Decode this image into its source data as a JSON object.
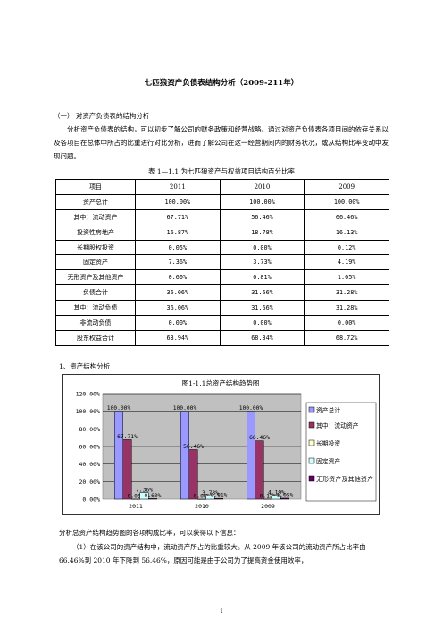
{
  "title": "七匹狼资产负债表结构分析（2009-211年）",
  "heading": "（一） 对资产负债表的结构分析",
  "intro": "分析资产负债表的结构，可以初步了解公司的财务政策和经营战略。通过对资产负债表各项目间的依存关系以及各项目在总体中所占的比重进行对比分析，进而了解公司在这一经营期间内的财务状况，或从结构比率变动中发现问题。",
  "table_caption": "表 1—1.1 为七匹狼资产与权益项目结构百分比率",
  "table": {
    "headers": [
      "项目",
      "2011",
      "2010",
      "2009"
    ],
    "rows": [
      [
        "资产总计",
        "100.00%",
        "100.00%",
        "100.00%"
      ],
      [
        "其中：流动资产",
        "67.71%",
        "56.46%",
        "66.46%"
      ],
      [
        "投资性房地产",
        "16.87%",
        "18.78%",
        "16.13%"
      ],
      [
        "长期股权投资",
        "0.05%",
        "0.00%",
        "0.12%"
      ],
      [
        "固定资产",
        "7.36%",
        "3.73%",
        "4.19%"
      ],
      [
        "无形资产及其他资产",
        "0.60%",
        "0.81%",
        "1.05%"
      ],
      [
        "负债合计",
        "36.06%",
        "31.66%",
        "31.28%"
      ],
      [
        "其中：流动负债",
        "36.06%",
        "31.66%",
        "31.28%"
      ],
      [
        "非流动负债",
        "0.00%",
        "0.00%",
        "0.00%"
      ],
      [
        "股东权益合计",
        "63.94%",
        "68.34%",
        "68.72%"
      ]
    ]
  },
  "section_title": "1、资产结构分析",
  "chart_data": {
    "type": "bar",
    "title": "图1-1.1总资产结构趋势图",
    "categories": [
      "2011",
      "2010",
      "2009"
    ],
    "series": [
      {
        "name": "资产总计",
        "values": [
          100.0,
          100.0,
          100.0
        ],
        "labels": [
          "100.00%",
          "100.00%",
          "100.00%"
        ],
        "color": "#9999FF"
      },
      {
        "name": "其中：流动资产",
        "values": [
          67.71,
          56.46,
          66.46
        ],
        "labels": [
          "67.71%",
          "56.46%",
          "66.46%"
        ],
        "color": "#993366"
      },
      {
        "name": "长期投资",
        "values": [
          0.05,
          0.0,
          0.12
        ],
        "labels": [
          "0.05%",
          "0.00%",
          "0.12%"
        ],
        "color": "#FFFFCC"
      },
      {
        "name": "固定资产",
        "values": [
          7.36,
          3.73,
          4.19
        ],
        "labels": [
          "7.36%",
          "3.73%",
          "4.19%"
        ],
        "color": "#CCFFFF"
      },
      {
        "name": "无形资产及其他资产",
        "values": [
          0.6,
          0.81,
          1.05
        ],
        "labels": [
          "0.60%",
          "0.81%",
          "1.05%"
        ],
        "color": "#660066"
      }
    ],
    "ylim": [
      0,
      120
    ],
    "yticks": [
      "0.00%",
      "20.00%",
      "40.00%",
      "60.00%",
      "80.00%",
      "100.00%",
      "120.00%"
    ],
    "grid": true,
    "legend": "right"
  },
  "after_title": "分析总资产结构趋势图的各项构成比率，可以获得以下信息：",
  "after_para": "（1）在该公司的资产结构中，流动资产所占的比重较大。从 2009 年该公司的流动资产所占比率由 66.46%到 2010 年下降到 56.46%，原因可能是由于公司为了提高资金使用效率，",
  "page_number": "1"
}
